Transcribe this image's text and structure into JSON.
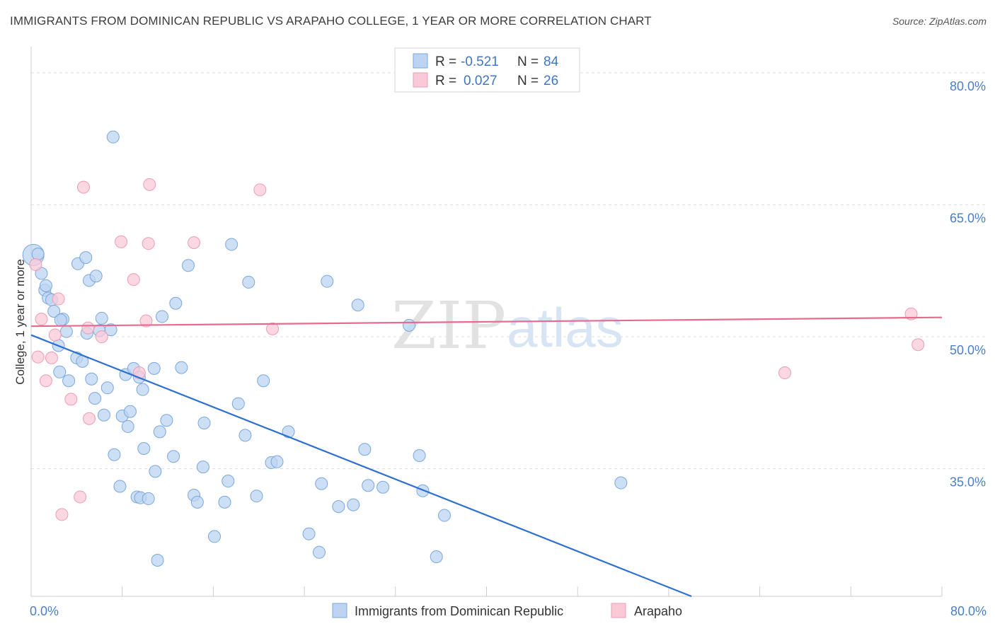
{
  "header": {
    "title": "IMMIGRANTS FROM DOMINICAN REPUBLIC VS ARAPAHO COLLEGE, 1 YEAR OR MORE CORRELATION CHART",
    "source": "Source: ZipAtlas.com"
  },
  "watermark": {
    "zip": "ZIP",
    "atlas": "atlas"
  },
  "legend_top": {
    "rows": [
      {
        "r_label": "R =",
        "r_value": "-0.521",
        "n_label": "N =",
        "n_value": "84"
      },
      {
        "r_label": "R =",
        "r_value": "0.027",
        "n_label": "N =",
        "n_value": "26"
      }
    ]
  },
  "chart_data": {
    "type": "scatter",
    "title": "IMMIGRANTS FROM DOMINICAN REPUBLIC VS ARAPAHO COLLEGE, 1 YEAR OR MORE CORRELATION CHART",
    "xlabel": "",
    "ylabel": "College, 1 year or more",
    "xlim": [
      0,
      80
    ],
    "ylim": [
      20.5,
      82
    ],
    "x_tick_labels": [
      {
        "value": 0,
        "label": "0.0%"
      },
      {
        "value": 80,
        "label": "80.0%"
      }
    ],
    "y_tick_labels": [
      {
        "value": 35,
        "label": "35.0%"
      },
      {
        "value": 50,
        "label": "50.0%"
      },
      {
        "value": 65,
        "label": "65.0%"
      },
      {
        "value": 80,
        "label": "80.0%"
      }
    ],
    "colors": {
      "blue_fill": "#bcd4f2",
      "blue_stroke": "#7aa7dd",
      "blue_line": "#2e6fd1",
      "pink_fill": "#f9c9d8",
      "pink_stroke": "#ec9cb6",
      "pink_line": "#e56b8f",
      "tick_label": "#4a7fc8",
      "grid": "#dddddd"
    },
    "series": [
      {
        "name": "Immigrants from Dominican Republic",
        "color": "blue",
        "R": -0.521,
        "N": 84,
        "trend": {
          "x0": 0,
          "y0": 50.2,
          "x1": 58,
          "y1": 20.5
        },
        "points": [
          {
            "x": 0.2,
            "y": 59.3,
            "big": true
          },
          {
            "x": 0.6,
            "y": 59.4
          },
          {
            "x": 0.9,
            "y": 57.2
          },
          {
            "x": 1.2,
            "y": 55.3
          },
          {
            "x": 1.3,
            "y": 55.8
          },
          {
            "x": 1.5,
            "y": 54.4
          },
          {
            "x": 1.8,
            "y": 54.2
          },
          {
            "x": 2.0,
            "y": 52.9
          },
          {
            "x": 2.8,
            "y": 52.0
          },
          {
            "x": 2.4,
            "y": 49.0
          },
          {
            "x": 3.1,
            "y": 50.6
          },
          {
            "x": 4.1,
            "y": 58.3
          },
          {
            "x": 4.8,
            "y": 59.0
          },
          {
            "x": 5.1,
            "y": 56.4
          },
          {
            "x": 5.7,
            "y": 56.9
          },
          {
            "x": 4.0,
            "y": 47.6
          },
          {
            "x": 4.5,
            "y": 47.2
          },
          {
            "x": 2.5,
            "y": 46.0
          },
          {
            "x": 3.3,
            "y": 45.0
          },
          {
            "x": 5.3,
            "y": 45.2
          },
          {
            "x": 5.6,
            "y": 43.0
          },
          {
            "x": 6.0,
            "y": 50.7
          },
          {
            "x": 6.2,
            "y": 52.1
          },
          {
            "x": 7.0,
            "y": 50.8
          },
          {
            "x": 6.7,
            "y": 44.2
          },
          {
            "x": 6.4,
            "y": 41.1
          },
          {
            "x": 7.3,
            "y": 36.6
          },
          {
            "x": 7.8,
            "y": 33.0
          },
          {
            "x": 8.0,
            "y": 41.0
          },
          {
            "x": 8.5,
            "y": 39.8
          },
          {
            "x": 8.7,
            "y": 41.5
          },
          {
            "x": 8.3,
            "y": 45.7
          },
          {
            "x": 9.0,
            "y": 46.4
          },
          {
            "x": 9.5,
            "y": 45.4
          },
          {
            "x": 9.8,
            "y": 44.0
          },
          {
            "x": 9.3,
            "y": 31.8
          },
          {
            "x": 9.6,
            "y": 31.7
          },
          {
            "x": 10.3,
            "y": 31.6
          },
          {
            "x": 9.9,
            "y": 37.3
          },
          {
            "x": 10.9,
            "y": 34.7
          },
          {
            "x": 11.3,
            "y": 39.2
          },
          {
            "x": 11.9,
            "y": 40.5
          },
          {
            "x": 12.5,
            "y": 36.4
          },
          {
            "x": 10.8,
            "y": 46.4
          },
          {
            "x": 11.5,
            "y": 52.3
          },
          {
            "x": 12.7,
            "y": 53.8
          },
          {
            "x": 13.2,
            "y": 46.5
          },
          {
            "x": 13.8,
            "y": 58.1
          },
          {
            "x": 14.3,
            "y": 32.0
          },
          {
            "x": 14.6,
            "y": 31.2
          },
          {
            "x": 15.2,
            "y": 40.2
          },
          {
            "x": 15.1,
            "y": 35.2
          },
          {
            "x": 16.1,
            "y": 27.3
          },
          {
            "x": 17.0,
            "y": 31.2
          },
          {
            "x": 17.3,
            "y": 33.6
          },
          {
            "x": 17.6,
            "y": 60.5
          },
          {
            "x": 18.2,
            "y": 42.4
          },
          {
            "x": 18.8,
            "y": 38.8
          },
          {
            "x": 19.1,
            "y": 56.2
          },
          {
            "x": 19.8,
            "y": 31.9
          },
          {
            "x": 20.4,
            "y": 45.0
          },
          {
            "x": 21.1,
            "y": 35.7
          },
          {
            "x": 21.6,
            "y": 35.8
          },
          {
            "x": 22.6,
            "y": 39.2
          },
          {
            "x": 24.4,
            "y": 27.6
          },
          {
            "x": 25.3,
            "y": 25.5
          },
          {
            "x": 25.5,
            "y": 33.3
          },
          {
            "x": 26.0,
            "y": 56.3
          },
          {
            "x": 27.0,
            "y": 30.7
          },
          {
            "x": 28.3,
            "y": 30.9
          },
          {
            "x": 28.7,
            "y": 53.6
          },
          {
            "x": 29.3,
            "y": 37.2
          },
          {
            "x": 29.6,
            "y": 33.1
          },
          {
            "x": 30.9,
            "y": 32.9
          },
          {
            "x": 33.2,
            "y": 51.3
          },
          {
            "x": 34.1,
            "y": 36.5
          },
          {
            "x": 34.4,
            "y": 32.5
          },
          {
            "x": 35.6,
            "y": 25.0
          },
          {
            "x": 36.3,
            "y": 29.7
          },
          {
            "x": 51.8,
            "y": 33.4
          },
          {
            "x": 11.1,
            "y": 24.6
          },
          {
            "x": 7.2,
            "y": 72.7
          },
          {
            "x": 2.6,
            "y": 51.9
          },
          {
            "x": 4.9,
            "y": 50.4
          }
        ]
      },
      {
        "name": "Arapaho",
        "color": "pink",
        "R": 0.027,
        "N": 26,
        "trend": {
          "x0": 0,
          "y0": 51.2,
          "x1": 80,
          "y1": 52.2
        },
        "points": [
          {
            "x": 0.4,
            "y": 58.2
          },
          {
            "x": 0.6,
            "y": 47.7
          },
          {
            "x": 0.9,
            "y": 52.0
          },
          {
            "x": 1.3,
            "y": 45.0
          },
          {
            "x": 1.8,
            "y": 47.6
          },
          {
            "x": 2.1,
            "y": 50.2
          },
          {
            "x": 2.4,
            "y": 54.3
          },
          {
            "x": 3.5,
            "y": 42.9
          },
          {
            "x": 4.3,
            "y": 31.8
          },
          {
            "x": 4.6,
            "y": 67.0
          },
          {
            "x": 5.0,
            "y": 51.0
          },
          {
            "x": 5.1,
            "y": 40.7
          },
          {
            "x": 6.2,
            "y": 50.0
          },
          {
            "x": 7.9,
            "y": 60.8
          },
          {
            "x": 9.0,
            "y": 56.5
          },
          {
            "x": 9.5,
            "y": 45.9
          },
          {
            "x": 10.1,
            "y": 51.8
          },
          {
            "x": 10.3,
            "y": 60.6
          },
          {
            "x": 10.4,
            "y": 67.3
          },
          {
            "x": 14.3,
            "y": 60.7
          },
          {
            "x": 20.1,
            "y": 66.7
          },
          {
            "x": 21.2,
            "y": 50.9
          },
          {
            "x": 66.2,
            "y": 45.9
          },
          {
            "x": 77.3,
            "y": 52.6
          },
          {
            "x": 77.9,
            "y": 49.1
          },
          {
            "x": 2.7,
            "y": 29.8
          }
        ]
      }
    ],
    "legend": {
      "position": "bottom-center"
    }
  }
}
